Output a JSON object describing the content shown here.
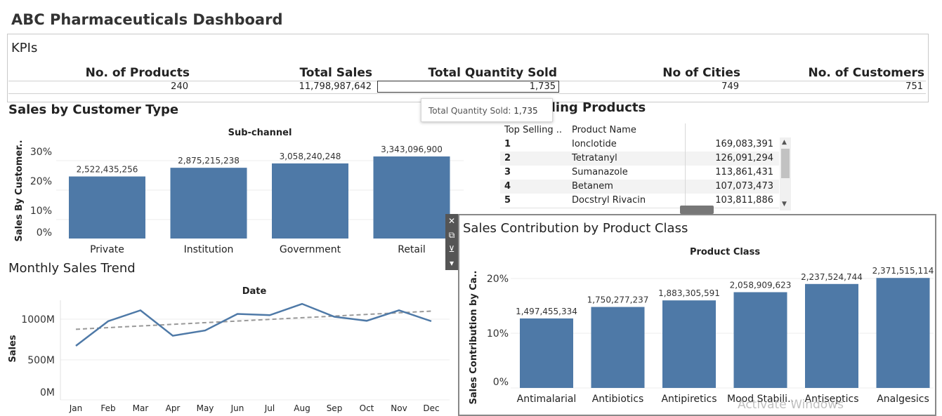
{
  "dashboard": {
    "title": "ABC Pharmaceuticals Dashboard"
  },
  "kpis": {
    "section_title": "KPIs",
    "columns": [
      {
        "label": "No. of Products",
        "value": "240"
      },
      {
        "label": "Total Sales",
        "value": "11,798,987,642"
      },
      {
        "label": "Total Quantity Sold",
        "value": "1,735"
      },
      {
        "label": "No of Cities",
        "value": "749"
      },
      {
        "label": "No. of Customers",
        "value": "751"
      }
    ],
    "tooltip": {
      "label": "Total Quantity Sold:",
      "value": "1,735"
    }
  },
  "customer_type": {
    "section_title": "Sales by Customer Type",
    "header": "Sub-channel",
    "y_axis_label": "Sales By Customer..",
    "y_ticks": [
      "30%",
      "20%",
      "10%",
      "0%"
    ]
  },
  "top_products": {
    "section_title": "Top Selling Products",
    "columns": [
      "Top Selling ..",
      "Product Name"
    ],
    "rows": [
      {
        "rank": "1",
        "name": "Ionclotide",
        "sales": "169,083,391"
      },
      {
        "rank": "2",
        "name": "Tetratanyl",
        "sales": "126,091,294"
      },
      {
        "rank": "3",
        "name": "Sumanazole",
        "sales": "113,861,431"
      },
      {
        "rank": "4",
        "name": "Betanem",
        "sales": "107,073,473"
      },
      {
        "rank": "5",
        "name": "Docstryl Rivacin",
        "sales": "103,811,886"
      }
    ]
  },
  "monthly_trend": {
    "section_title": "Monthly Sales Trend",
    "header": "Date",
    "y_axis_label": "Sales",
    "y_ticks": [
      "1000M",
      "500M",
      "0M"
    ]
  },
  "product_class": {
    "section_title": "Sales Contribution by Product Class",
    "header": "Product Class",
    "y_axis_label": "Sales Contribution by Ca..",
    "y_ticks": [
      "20%",
      "10%",
      "0%"
    ]
  },
  "toolbar": {
    "close": "✕",
    "open": "⧉",
    "filter": "⊻",
    "menu": "▾"
  },
  "watermark": "Activate Windows",
  "colors": {
    "bar": "#4e79a7",
    "trend": "#999999",
    "text": "#333333"
  },
  "chart_data": [
    {
      "type": "bar",
      "title": "Sub-channel",
      "ylabel": "Sales By Customer..",
      "categories": [
        "Private",
        "Institution",
        "Government",
        "Retail"
      ],
      "values": [
        2522435256,
        2875215238,
        3058240248,
        3343096900
      ],
      "labels": [
        "2,522,435,256",
        "2,875,215,238",
        "3,058,240,248",
        "3,343,096,900"
      ],
      "percent": [
        21.4,
        24.4,
        25.9,
        28.3
      ],
      "ylim": [
        0,
        30
      ]
    },
    {
      "type": "line",
      "title": "Date",
      "ylabel": "Sales",
      "x": [
        "Jan",
        "Feb",
        "Mar",
        "Apr",
        "May",
        "Jun",
        "Jul",
        "Aug",
        "Sep",
        "Oct",
        "Nov",
        "Dec"
      ],
      "series": [
        {
          "values": [
            670,
            975,
            1110,
            795,
            860,
            1065,
            1050,
            1190,
            1030,
            980,
            1110,
            975
          ]
        }
      ],
      "trend_line": [
        875,
        1100
      ],
      "ylim": [
        0,
        1200
      ],
      "unit": "M"
    },
    {
      "type": "bar",
      "title": "Product Class",
      "ylabel": "Sales Contribution by Ca..",
      "categories": [
        "Antimalarial",
        "Antibiotics",
        "Antipiretics",
        "Mood Stabili..",
        "Antiseptics",
        "Analgesics"
      ],
      "values": [
        1497455334,
        1750277237,
        1883305591,
        2058909623,
        2237524744,
        2371515114
      ],
      "labels": [
        "1,497,455,334",
        "1,750,277,237",
        "1,883,305,591",
        "2,058,909,623",
        "2,237,524,744",
        "2,371,515,114"
      ],
      "percent": [
        12.7,
        14.8,
        16.0,
        17.5,
        19.0,
        20.1
      ],
      "ylim": [
        0,
        22
      ]
    }
  ]
}
